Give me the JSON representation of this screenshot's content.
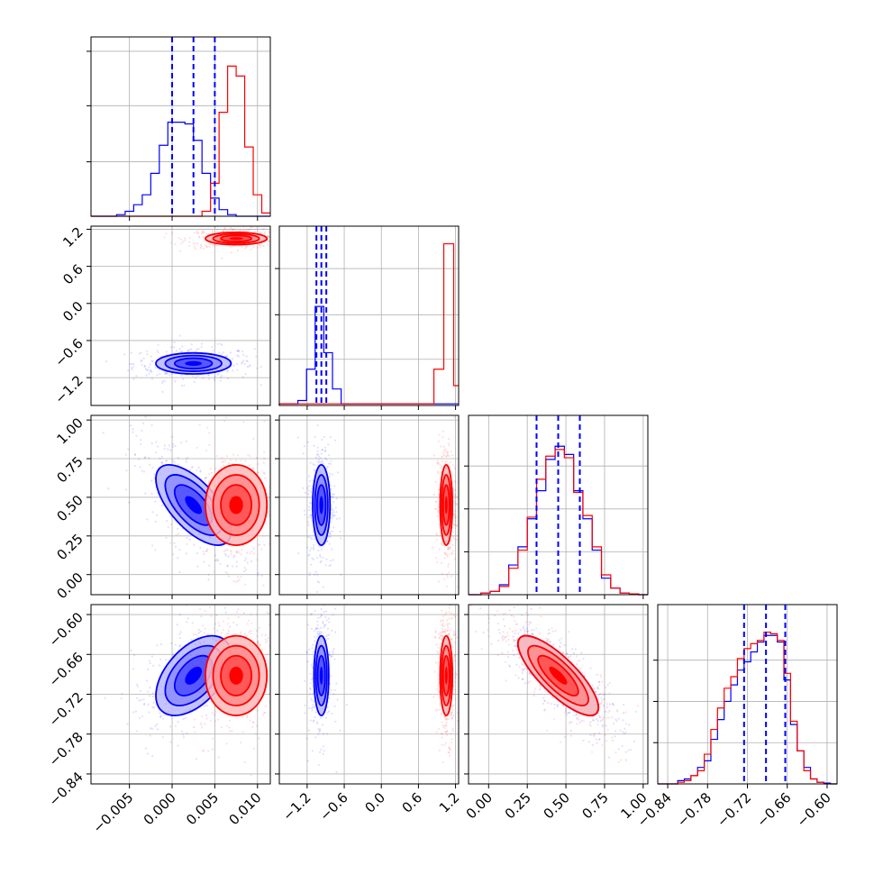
{
  "chart_data": {
    "type": "corner",
    "title": "",
    "colors": {
      "series_a": "#0000ff",
      "series_b": "#ff0000",
      "grid": "#b0b0b0"
    },
    "grid": true,
    "series": [
      {
        "color": "#0000ff"
      },
      {
        "color": "#ff0000"
      }
    ],
    "params": [
      {
        "range": [
          -0.0095,
          0.0115
        ],
        "ticks": [
          -0.005,
          0.0,
          0.005,
          0.01
        ],
        "tick_labels": [
          "−0.005",
          "0.000",
          "0.005",
          "0.010"
        ],
        "hist_max": 1.0,
        "hist_ticks": [
          0.33,
          0.67,
          1.0
        ],
        "quantiles": [
          0.0,
          0.0025,
          0.005
        ],
        "hist_a": {
          "edges": [
            -0.0095,
            -0.0085,
            -0.0075,
            -0.0065,
            -0.0055,
            -0.0045,
            -0.0035,
            -0.0025,
            -0.0015,
            -0.0005,
            0.0005,
            0.0015,
            0.0025,
            0.0035,
            0.0045,
            0.0055,
            0.0065,
            0.0075,
            0.0085,
            0.0095,
            0.0105,
            0.0115
          ],
          "counts": [
            0,
            0,
            0,
            0.01,
            0.03,
            0.07,
            0.13,
            0.26,
            0.43,
            0.57,
            0.57,
            0.56,
            0.46,
            0.26,
            0.11,
            0.04,
            0.01,
            0,
            0,
            0,
            0
          ]
        },
        "hist_b": {
          "edges": [
            -0.0095,
            -0.0085,
            -0.0075,
            -0.0065,
            -0.0055,
            -0.0045,
            -0.0035,
            -0.0025,
            -0.0015,
            -0.0005,
            0.0005,
            0.0015,
            0.0025,
            0.0035,
            0.0045,
            0.0055,
            0.0065,
            0.0075,
            0.0085,
            0.0095,
            0.0105,
            0.0115
          ],
          "counts": [
            0,
            0,
            0,
            0,
            0,
            0,
            0,
            0,
            0,
            0,
            0,
            0,
            0,
            0.03,
            0.2,
            0.63,
            0.91,
            0.85,
            0.42,
            0.13,
            0.02
          ]
        }
      },
      {
        "range": [
          -1.65,
          1.25
        ],
        "ticks": [
          -1.2,
          -0.6,
          0.0,
          0.6,
          1.2
        ],
        "tick_labels": [
          "−1.2",
          "−0.6",
          "0.0",
          "0.6",
          "1.2"
        ],
        "hist_max": 1.0,
        "hist_ticks": [
          0.28,
          0.55,
          0.83
        ],
        "quantiles": [
          -1.05,
          -0.97,
          -0.89
        ],
        "hist_a": {
          "edges": [
            -1.65,
            -1.35,
            -1.21,
            -1.07,
            -0.93,
            -0.79,
            -0.65,
            1.25
          ],
          "counts": [
            0.01,
            0.03,
            0.22,
            0.6,
            0.32,
            0.1,
            0.01
          ]
        },
        "hist_b": {
          "edges": [
            -1.65,
            0.85,
            1.01,
            1.17,
            1.25
          ],
          "counts": [
            0.01,
            0.22,
            0.98,
            0.12
          ]
        }
      },
      {
        "range": [
          -0.13,
          1.03
        ],
        "ticks": [
          0.0,
          0.25,
          0.5,
          0.75,
          1.0
        ],
        "tick_labels": [
          "0.00",
          "0.25",
          "0.50",
          "0.75",
          "1.00"
        ],
        "hist_max": 1.0,
        "hist_ticks": [
          0.26,
          0.52,
          0.78
        ],
        "quantiles": [
          0.31,
          0.45,
          0.59
        ],
        "hist_a": {
          "edges": [
            -0.13,
            -0.05,
            0.01,
            0.07,
            0.13,
            0.19,
            0.25,
            0.31,
            0.37,
            0.43,
            0.49,
            0.55,
            0.61,
            0.67,
            0.73,
            0.79,
            0.85,
            0.91,
            0.97,
            1.03
          ],
          "counts": [
            0,
            0.01,
            0.02,
            0.06,
            0.18,
            0.29,
            0.46,
            0.63,
            0.82,
            0.9,
            0.85,
            0.63,
            0.46,
            0.27,
            0.1,
            0.04,
            0.01,
            0.005,
            0
          ]
        },
        "hist_b": {
          "edges": [
            -0.13,
            -0.05,
            0.01,
            0.07,
            0.13,
            0.19,
            0.25,
            0.31,
            0.37,
            0.43,
            0.49,
            0.55,
            0.61,
            0.67,
            0.73,
            0.79,
            0.85,
            0.91,
            0.97,
            1.03
          ],
          "counts": [
            0,
            0.01,
            0.02,
            0.05,
            0.16,
            0.27,
            0.47,
            0.7,
            0.84,
            0.88,
            0.83,
            0.62,
            0.48,
            0.29,
            0.12,
            0.04,
            0.01,
            0.005,
            0
          ]
        }
      },
      {
        "range": [
          -0.855,
          -0.585
        ],
        "ticks": [
          -0.84,
          -0.78,
          -0.72,
          -0.66,
          -0.6
        ],
        "tick_labels": [
          "−0.84",
          "−0.78",
          "−0.72",
          "−0.66",
          "−0.60"
        ],
        "hist_max": 1.0,
        "hist_ticks": [
          0.25,
          0.5,
          0.75
        ],
        "quantiles": [
          -0.725,
          -0.692,
          -0.663
        ],
        "hist_a": {
          "edges": [
            -0.855,
            -0.825,
            -0.815,
            -0.805,
            -0.795,
            -0.785,
            -0.775,
            -0.765,
            -0.755,
            -0.745,
            -0.735,
            -0.725,
            -0.715,
            -0.705,
            -0.695,
            -0.685,
            -0.675,
            -0.665,
            -0.655,
            -0.645,
            -0.635,
            -0.625,
            -0.615,
            -0.605,
            -0.595,
            -0.585
          ],
          "counts": [
            0,
            0.02,
            0.03,
            0.05,
            0.1,
            0.14,
            0.27,
            0.39,
            0.5,
            0.6,
            0.69,
            0.74,
            0.8,
            0.86,
            0.9,
            0.9,
            0.86,
            0.63,
            0.36,
            0.2,
            0.1,
            0.03,
            0.01,
            0.005,
            0
          ]
        },
        "hist_b": {
          "edges": [
            -0.855,
            -0.825,
            -0.815,
            -0.805,
            -0.795,
            -0.785,
            -0.775,
            -0.765,
            -0.755,
            -0.745,
            -0.735,
            -0.725,
            -0.715,
            -0.705,
            -0.695,
            -0.685,
            -0.675,
            -0.665,
            -0.655,
            -0.645,
            -0.635,
            -0.625,
            -0.615,
            -0.605,
            -0.595,
            -0.585
          ],
          "counts": [
            0,
            0.01,
            0.02,
            0.05,
            0.08,
            0.18,
            0.33,
            0.46,
            0.58,
            0.65,
            0.76,
            0.82,
            0.85,
            0.87,
            0.92,
            0.91,
            0.87,
            0.67,
            0.38,
            0.2,
            0.08,
            0.03,
            0.01,
            0,
            0
          ]
        }
      }
    ],
    "pairs": [
      {
        "row": 1,
        "col": 0,
        "blobs": [
          {
            "series": 0,
            "mean": [
              0.0025,
              -0.97
            ],
            "sd": [
              0.0022,
              0.085
            ],
            "rho": 0.0
          },
          {
            "series": 1,
            "mean": [
              0.0075,
              1.05
            ],
            "sd": [
              0.0018,
              0.05
            ],
            "rho": 0.0
          }
        ]
      },
      {
        "row": 2,
        "col": 0,
        "blobs": [
          {
            "series": 0,
            "mean": [
              0.0025,
              0.45
            ],
            "sd": [
              0.0022,
              0.13
            ],
            "rho": -0.65
          },
          {
            "series": 1,
            "mean": [
              0.0075,
              0.45
            ],
            "sd": [
              0.0018,
              0.13
            ],
            "rho": 0.0
          }
        ]
      },
      {
        "row": 2,
        "col": 1,
        "blobs": [
          {
            "series": 0,
            "mean": [
              -0.97,
              0.45
            ],
            "sd": [
              0.07,
              0.13
            ],
            "rho": 0.0
          },
          {
            "series": 1,
            "mean": [
              1.05,
              0.45
            ],
            "sd": [
              0.05,
              0.13
            ],
            "rho": 0.0
          }
        ]
      },
      {
        "row": 3,
        "col": 0,
        "blobs": [
          {
            "series": 0,
            "mean": [
              0.0025,
              -0.692
            ],
            "sd": [
              0.0022,
              0.03
            ],
            "rho": 0.5
          },
          {
            "series": 1,
            "mean": [
              0.0075,
              -0.692
            ],
            "sd": [
              0.0018,
              0.03
            ],
            "rho": 0.0
          }
        ]
      },
      {
        "row": 3,
        "col": 1,
        "blobs": [
          {
            "series": 0,
            "mean": [
              -0.97,
              -0.692
            ],
            "sd": [
              0.06,
              0.03
            ],
            "rho": 0.0
          },
          {
            "series": 1,
            "mean": [
              1.05,
              -0.692
            ],
            "sd": [
              0.05,
              0.03
            ],
            "rho": 0.0
          }
        ]
      },
      {
        "row": 3,
        "col": 2,
        "blobs": [
          {
            "series": 0,
            "mean": [
              0.45,
              -0.692
            ],
            "sd": [
              0.13,
              0.03
            ],
            "rho": -0.8
          },
          {
            "series": 1,
            "mean": [
              0.45,
              -0.692
            ],
            "sd": [
              0.13,
              0.03
            ],
            "rho": -0.8
          }
        ]
      }
    ]
  }
}
